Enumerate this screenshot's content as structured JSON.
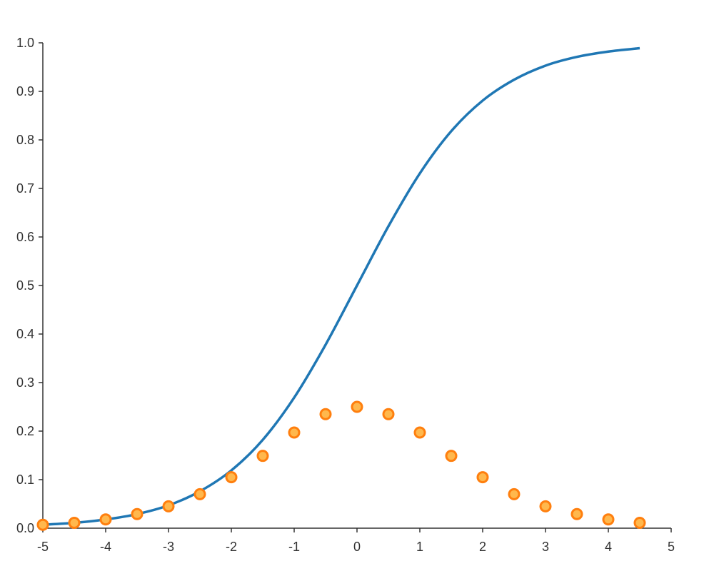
{
  "chart_data": {
    "type": "line",
    "title": "",
    "xlabel": "",
    "ylabel": "",
    "xlim": [
      -5,
      5
    ],
    "ylim": [
      0,
      1.0
    ],
    "grid": false,
    "legend": "none",
    "x_ticks": [
      "-5",
      "-4",
      "-3",
      "-2",
      "-1",
      "0",
      "1",
      "2",
      "3",
      "4",
      "5"
    ],
    "y_ticks": [
      "0.0",
      "0.1",
      "0.2",
      "0.3",
      "0.4",
      "0.5",
      "0.6",
      "0.7",
      "0.8",
      "0.9",
      "1.0"
    ],
    "series": [
      {
        "kind": "line",
        "color": "#1f77b4",
        "x": [
          -5,
          -4.5,
          -4,
          -3.5,
          -3,
          -2.5,
          -2,
          -1.5,
          -1,
          -0.5,
          0,
          0.5,
          1,
          1.5,
          2,
          2.5,
          3,
          3.5,
          4,
          4.5
        ],
        "y": [
          0.007,
          0.011,
          0.018,
          0.029,
          0.047,
          0.076,
          0.119,
          0.182,
          0.269,
          0.378,
          0.5,
          0.622,
          0.731,
          0.818,
          0.881,
          0.924,
          0.953,
          0.971,
          0.982,
          0.989
        ]
      },
      {
        "kind": "scatter",
        "color": "#ff7f0e",
        "fill": "#ffb84d",
        "x": [
          -5,
          -4.5,
          -4,
          -3.5,
          -3,
          -2.5,
          -2,
          -1.5,
          -1,
          -0.5,
          0,
          0.5,
          1,
          1.5,
          2,
          2.5,
          3,
          3.5,
          4,
          4.5
        ],
        "y": [
          0.007,
          0.011,
          0.018,
          0.029,
          0.045,
          0.07,
          0.105,
          0.149,
          0.197,
          0.235,
          0.25,
          0.235,
          0.197,
          0.149,
          0.105,
          0.07,
          0.045,
          0.029,
          0.018,
          0.011
        ]
      }
    ]
  }
}
